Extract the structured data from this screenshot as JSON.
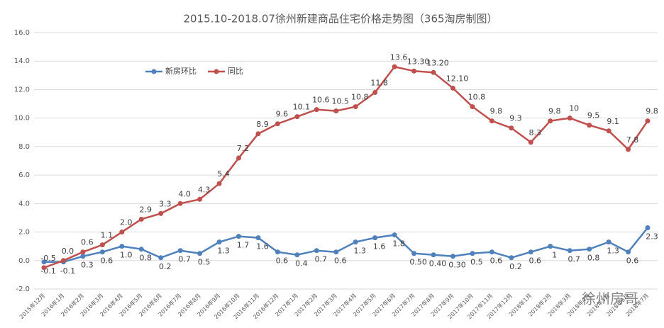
{
  "chart_data": {
    "type": "line",
    "title": "2015.10-2018.07徐州新建商品住宅价格走势图（365淘房制图）",
    "categories": [
      "2015年12月",
      "2016年1月",
      "2016年2月",
      "2016年3月",
      "2016年4月",
      "2016年5月",
      "2016年6月",
      "2016年7月",
      "2016年8月",
      "2016年9月",
      "2016年10月",
      "2016年11月",
      "2016年12月",
      "2017年1月",
      "2017年2月",
      "2017年3月",
      "2017年4月",
      "2017年5月",
      "2017年6月",
      "2017年7月",
      "2017年8月",
      "2017年9月",
      "2017年10月",
      "2017年11月",
      "2017年12月",
      "2018年1月",
      "2018年2月",
      "2018年3月",
      "2018年4月",
      "2018年5月",
      "2018年6月",
      "2018年7月"
    ],
    "series": [
      {
        "name": "新房环比",
        "color": "#4f81bd",
        "values": [
          -0.1,
          -0.1,
          0.3,
          0.6,
          1.0,
          0.8,
          0.2,
          0.7,
          0.5,
          1.3,
          1.7,
          1.6,
          0.6,
          0.4,
          0.7,
          0.6,
          1.3,
          1.6,
          1.8,
          0.5,
          0.4,
          0.3,
          0.5,
          0.6,
          0.2,
          0.6,
          1,
          0.7,
          0.8,
          1.3,
          0.6,
          2.3
        ],
        "value_labels": [
          "-0.1",
          "-0.1",
          "0.3",
          "0.6",
          "1.0",
          "0.8",
          "0.2",
          "0.7",
          "0.5",
          "1.3",
          "1.7",
          "1.6",
          "0.6",
          "0.4",
          "0.7",
          "0.6",
          "1.3",
          "1.6",
          "1.8",
          "0.50",
          "0.40",
          "0.30",
          "0.5",
          "0.6",
          "0.2",
          "0.6",
          "1",
          "0.7",
          "0.8",
          "1.3",
          "0.6",
          "2.3"
        ]
      },
      {
        "name": "同比",
        "color": "#c0504d",
        "values": [
          -0.5,
          0.0,
          0.6,
          1.1,
          2.0,
          2.9,
          3.3,
          4.0,
          4.3,
          5.4,
          7.2,
          8.9,
          9.6,
          10.1,
          10.6,
          10.5,
          10.8,
          11.8,
          13.6,
          13.3,
          13.2,
          12.1,
          10.8,
          9.8,
          9.3,
          8.3,
          9.8,
          10,
          9.5,
          9.1,
          7.8,
          9.8
        ],
        "value_labels": [
          "-0.5",
          "0.0",
          "0.6",
          "1.1",
          "2.0",
          "2.9",
          "3.3",
          "4.0",
          "4.3",
          "5.4",
          "7.2",
          "8.9",
          "9.6",
          "10.1",
          "10.6",
          "10.5",
          "10.8",
          "11.8",
          "13.6",
          "13.30",
          "13.20",
          "12.10",
          "10.8",
          "9.8",
          "9.3",
          "8.3",
          "9.8",
          "10",
          "9.5",
          "9.1",
          "7.8",
          "9.8"
        ]
      }
    ],
    "ylim": [
      -2,
      16
    ],
    "yticks": [
      {
        "value": -2,
        "label": "-2.0"
      },
      {
        "value": 0,
        "label": "0.0"
      },
      {
        "value": 2,
        "label": "2.0"
      },
      {
        "value": 4,
        "label": "4.0"
      },
      {
        "value": 6,
        "label": "6.0"
      },
      {
        "value": 8,
        "label": "8.0"
      },
      {
        "value": 10,
        "label": "10.0"
      },
      {
        "value": 12,
        "label": "12.0"
      },
      {
        "value": 14,
        "label": "14.0"
      },
      {
        "value": 16,
        "label": "16.0"
      }
    ],
    "grid": true,
    "legend": "top-left",
    "watermark": "徐州房哥"
  }
}
